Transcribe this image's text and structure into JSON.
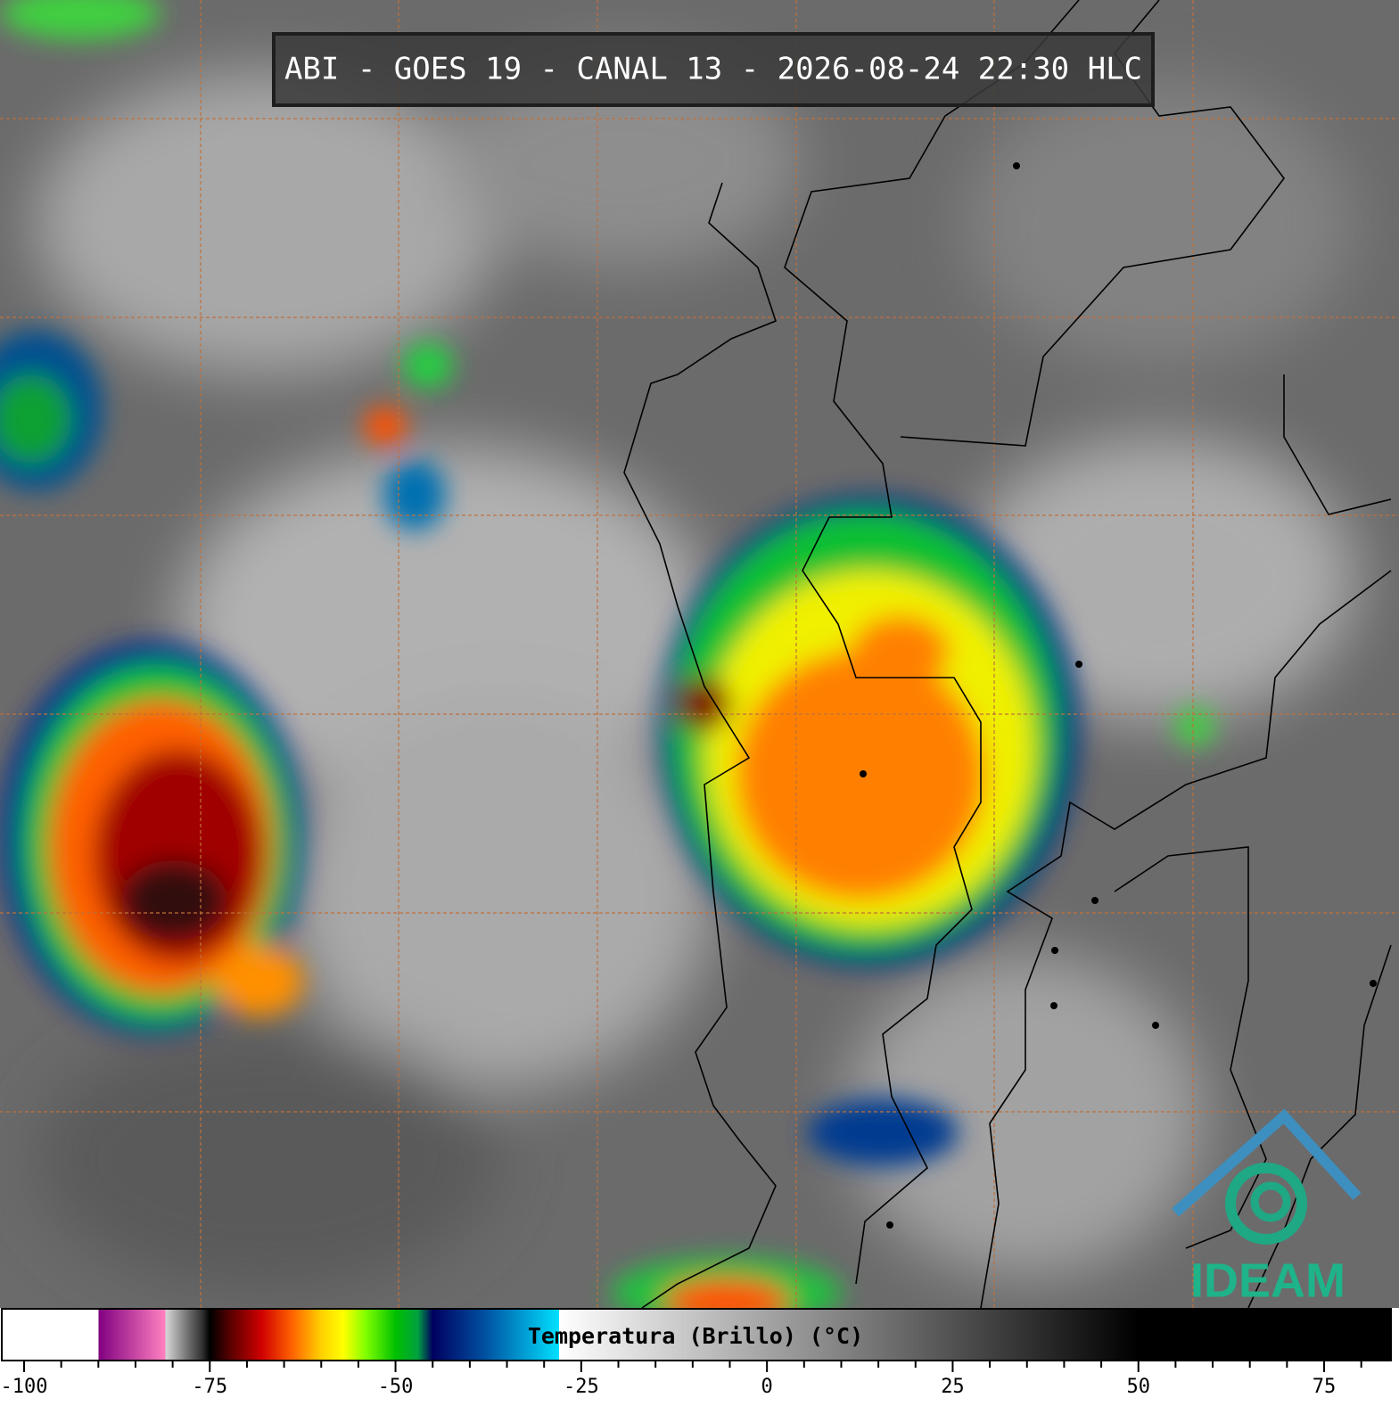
{
  "title": "ABI - GOES 19 - CANAL 13 - 2026-08-24 22:30 HLC",
  "logo": "IDEAM",
  "colorbar": {
    "label": "Temperatura (Brillo) (°C)",
    "xlim": [
      -103,
      84
    ],
    "xticks": [
      -100,
      -75,
      -50,
      -25,
      0,
      25,
      50,
      75
    ],
    "minor_ticks": [
      -95,
      -90,
      -85,
      -80,
      -70,
      -65,
      -60,
      -55,
      -45,
      -40,
      -35,
      -30,
      -20,
      -15,
      -10,
      -5,
      5,
      10,
      15,
      20,
      30,
      35,
      40,
      45,
      55,
      60,
      65,
      70,
      80
    ],
    "stops": [
      {
        "value": -103,
        "color": "#ffffff"
      },
      {
        "value": -90,
        "color": "#ffffff"
      },
      {
        "value": -90,
        "color": "#800080"
      },
      {
        "value": -81,
        "color": "#ff80c0"
      },
      {
        "value": -81,
        "color": "#d8d8d8"
      },
      {
        "value": -76,
        "color": "#303030"
      },
      {
        "value": -75,
        "color": "#000000"
      },
      {
        "value": -72,
        "color": "#600000"
      },
      {
        "value": -68,
        "color": "#d00000"
      },
      {
        "value": -64,
        "color": "#ff6000"
      },
      {
        "value": -60,
        "color": "#ffd000"
      },
      {
        "value": -57,
        "color": "#ffff00"
      },
      {
        "value": -54,
        "color": "#80ff00"
      },
      {
        "value": -50,
        "color": "#00c000"
      },
      {
        "value": -47,
        "color": "#00a040"
      },
      {
        "value": -45,
        "color": "#000060"
      },
      {
        "value": -38,
        "color": "#0050a0"
      },
      {
        "value": -28,
        "color": "#00e0ff"
      },
      {
        "value": -28,
        "color": "#ffffff"
      },
      {
        "value": 50,
        "color": "#000000"
      },
      {
        "value": 84,
        "color": "#000000"
      }
    ]
  }
}
